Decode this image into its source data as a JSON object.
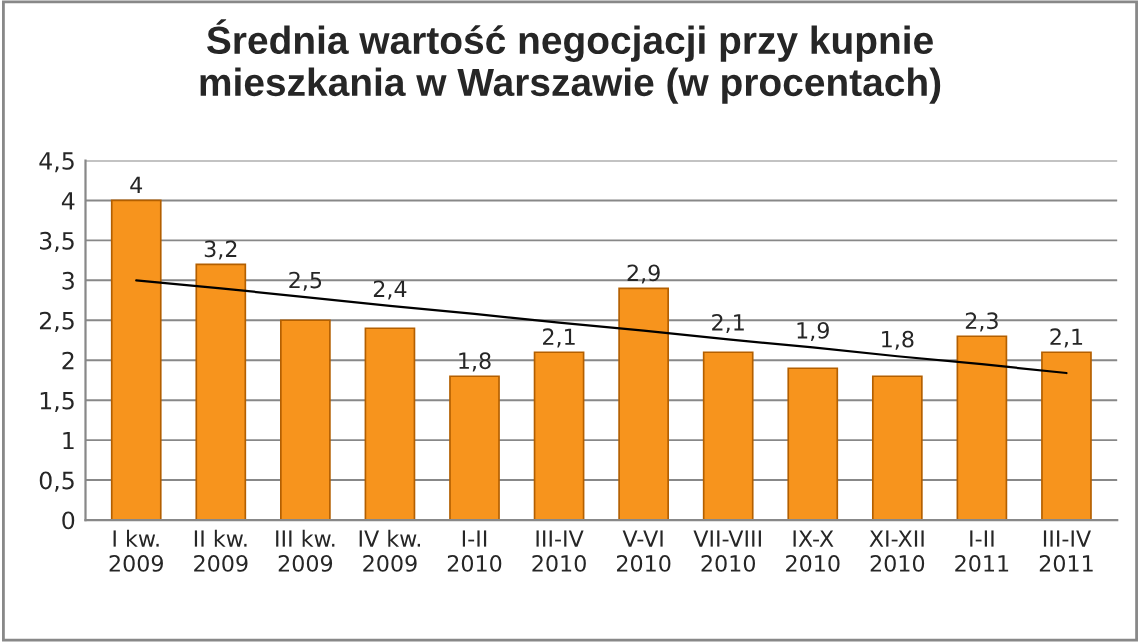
{
  "chart_data": {
    "type": "bar",
    "title": "Średnia wartość negocjacji przy kupnie\nmieszkania w Warszawie (w procentach)",
    "categories": [
      "I kw.\n2009",
      "II kw.\n2009",
      "III kw.\n2009",
      "IV kw.\n2009",
      "I-II\n2010",
      "III-IV\n2010",
      "V-VI\n2010",
      "VII-VIII\n2010",
      "IX-X\n2010",
      "XI-XII\n2010",
      "I-II\n2011",
      "III-IV\n2011"
    ],
    "series": [
      {
        "color": "#f7941d",
        "values": [
          4,
          3.2,
          2.5,
          2.4,
          1.8,
          2.1,
          2.9,
          2.1,
          1.9,
          1.8,
          2.3,
          2.1
        ],
        "value_labels": [
          "4",
          "3,2",
          "2,5",
          "2,4",
          "1,8",
          "2,1",
          "2,9",
          "2,1",
          "1,9",
          "1,8",
          "2,3",
          "2,1"
        ]
      },
      {
        "type": "line",
        "color": "#000000",
        "values": [
          3.0,
          2.9,
          2.79,
          2.68,
          2.58,
          2.47,
          2.37,
          2.26,
          2.16,
          2.05,
          1.95,
          1.84
        ]
      }
    ],
    "ylim": [
      0,
      4.5
    ],
    "yticks": [
      0,
      {
        "value": 0.5,
        "label": "0,5"
      },
      1,
      {
        "value": 1.5,
        "label": "1,5"
      },
      2,
      {
        "value": 2.5,
        "label": "2,5"
      },
      3,
      {
        "value": 3.5,
        "label": "3,5"
      },
      4,
      {
        "value": 4.5,
        "label": "4,5"
      }
    ],
    "grid": "y",
    "legend": false
  }
}
